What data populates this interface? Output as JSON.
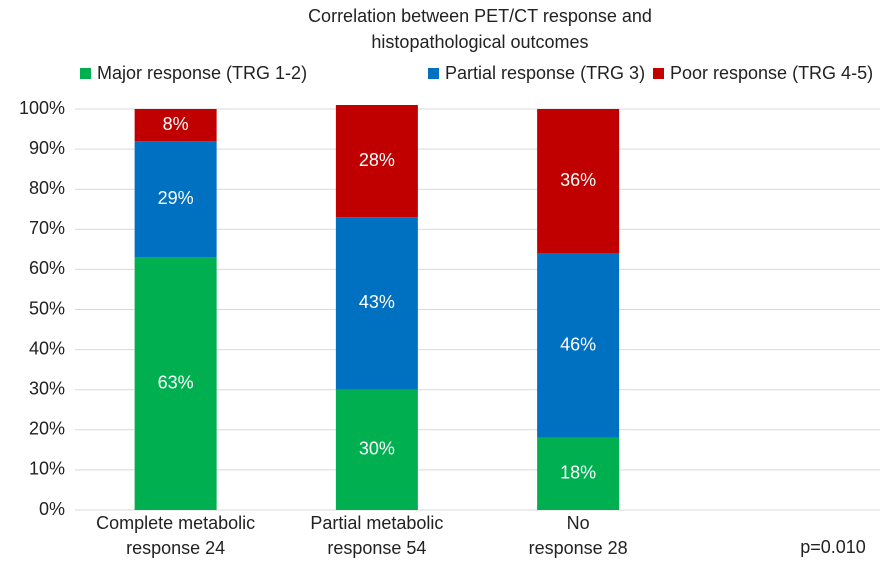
{
  "chart_data": {
    "type": "stacked_bar",
    "title": [
      "Correlation between PET/CT response and",
      "histopathological outcomes"
    ],
    "categories": [
      [
        "Complete metabolic",
        "response 24"
      ],
      [
        "Partial metabolic",
        "response 54"
      ],
      [
        "No",
        "response 28"
      ]
    ],
    "series": [
      {
        "name": "Major response (TRG 1-2)",
        "color": "#00b050",
        "values": [
          63,
          30,
          18
        ],
        "value_labels": [
          "63%",
          "30%",
          "18%"
        ]
      },
      {
        "name": "Partial response (TRG 3)",
        "color": "#0070c0",
        "values": [
          29,
          43,
          46
        ],
        "value_labels": [
          "29%",
          "43%",
          "46%"
        ]
      },
      {
        "name": "Poor response (TRG 4-5)",
        "color": "#c00000",
        "values": [
          8,
          28,
          36
        ],
        "value_labels": [
          "8%",
          "28%",
          "36%"
        ]
      }
    ],
    "ylim": [
      0,
      100
    ],
    "yticks": [
      {
        "value": 0,
        "label": "0%"
      },
      {
        "value": 10,
        "label": "10%"
      },
      {
        "value": 20,
        "label": "20%"
      },
      {
        "value": 30,
        "label": "30%"
      },
      {
        "value": 40,
        "label": "40%"
      },
      {
        "value": 50,
        "label": "50%"
      },
      {
        "value": 60,
        "label": "60%"
      },
      {
        "value": 70,
        "label": "70%"
      },
      {
        "value": 80,
        "label": "80%"
      },
      {
        "value": 90,
        "label": "90%"
      },
      {
        "value": 100,
        "label": "100%"
      }
    ],
    "grid": true,
    "legend": "top",
    "annotation": "p=0.010"
  }
}
